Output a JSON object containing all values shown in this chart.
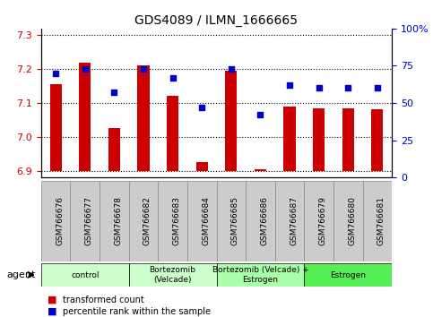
{
  "title": "GDS4089 / ILMN_1666665",
  "samples": [
    "GSM766676",
    "GSM766677",
    "GSM766678",
    "GSM766682",
    "GSM766683",
    "GSM766684",
    "GSM766685",
    "GSM766686",
    "GSM766687",
    "GSM766679",
    "GSM766680",
    "GSM766681"
  ],
  "transformed_count": [
    7.155,
    7.22,
    7.025,
    7.21,
    7.12,
    6.925,
    7.195,
    6.905,
    7.09,
    7.085,
    7.083,
    7.082
  ],
  "percentile_rank": [
    70,
    73,
    57,
    73,
    67,
    47,
    73,
    42,
    62,
    60,
    60,
    60
  ],
  "ylim_left": [
    6.88,
    7.32
  ],
  "ylim_right": [
    0,
    100
  ],
  "yticks_left": [
    6.9,
    7.0,
    7.1,
    7.2,
    7.3
  ],
  "yticks_right": [
    0,
    25,
    50,
    75,
    100
  ],
  "ytick_labels_right": [
    "0",
    "25",
    "50",
    "75",
    "100%"
  ],
  "groups": [
    {
      "label": "control",
      "start": 0,
      "end": 2,
      "color": "#ccffcc"
    },
    {
      "label": "Bortezomib\n(Velcade)",
      "start": 3,
      "end": 5,
      "color": "#ccffcc"
    },
    {
      "label": "Bortezomib (Velcade) +\nEstrogen",
      "start": 6,
      "end": 8,
      "color": "#aaffaa"
    },
    {
      "label": "Estrogen",
      "start": 9,
      "end": 11,
      "color": "#55ee55"
    }
  ],
  "bar_color": "#cc0000",
  "dot_color": "#0000cc",
  "bar_width": 0.4,
  "base_value": 6.9,
  "legend_labels": [
    "transformed count",
    "percentile rank within the sample"
  ],
  "legend_colors": [
    "#cc0000",
    "#0000cc"
  ],
  "agent_label": "agent",
  "tick_color_left": "#cc0000",
  "tick_color_right": "#0000cc",
  "sample_box_color": "#cccccc",
  "sample_box_edge": "#888888"
}
